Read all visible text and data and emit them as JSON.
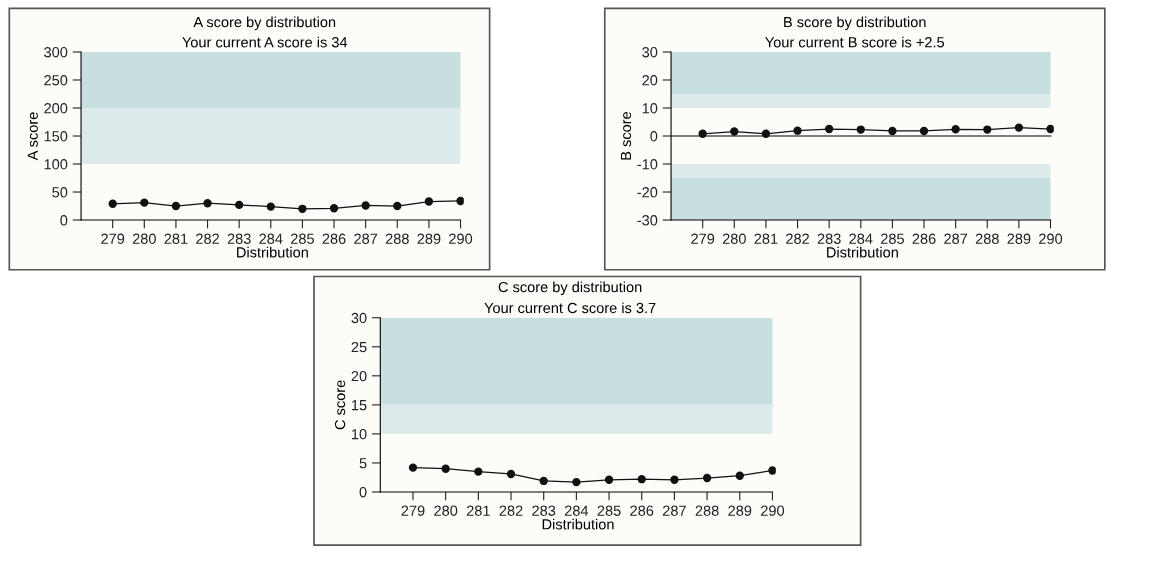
{
  "chart_data": [
    {
      "type": "line",
      "title": "A score by distribution",
      "subtitle": "Your current A score is 34",
      "xlabel": "Distribution",
      "ylabel": "A score",
      "categories": [
        "279",
        "280",
        "281",
        "282",
        "283",
        "284",
        "285",
        "286",
        "287",
        "288",
        "289",
        "290"
      ],
      "series": [
        {
          "color": "#111111",
          "values": [
            29,
            31,
            25,
            30,
            27,
            24,
            20,
            21,
            26,
            25,
            33,
            34
          ]
        }
      ],
      "ylim": [
        0,
        300
      ],
      "yticks": [
        0,
        50,
        100,
        150,
        200,
        250,
        300
      ],
      "bands": [
        {
          "axis": "y",
          "from": 100,
          "to": 200,
          "color": "#dcebea"
        },
        {
          "axis": "y",
          "from": 200,
          "to": 300,
          "color": "#c8dfe0"
        }
      ],
      "marker": "circle",
      "line_style": "solid",
      "grid": false,
      "legend": false
    },
    {
      "type": "line",
      "title": "B score by distribution",
      "subtitle": "Your current B score is +2.5",
      "xlabel": "Distribution",
      "ylabel": "B score",
      "categories": [
        "279",
        "280",
        "281",
        "282",
        "283",
        "284",
        "285",
        "286",
        "287",
        "288",
        "289",
        "290"
      ],
      "series": [
        {
          "color": "#111111",
          "values": [
            0.8,
            1.6,
            0.8,
            1.9,
            2.5,
            2.3,
            1.8,
            1.8,
            2.4,
            2.3,
            3.0,
            2.5
          ]
        }
      ],
      "ylim": [
        -30,
        30
      ],
      "yticks": [
        -30,
        -20,
        -10,
        0,
        10,
        20,
        30
      ],
      "bands": [
        {
          "axis": "y",
          "from": 10,
          "to": 15,
          "color": "#dcebea"
        },
        {
          "axis": "y",
          "from": 15,
          "to": 30,
          "color": "#c8dfe0"
        },
        {
          "axis": "y",
          "from": -15,
          "to": -10,
          "color": "#dcebea"
        },
        {
          "axis": "y",
          "from": -30,
          "to": -15,
          "color": "#c8dfe0"
        }
      ],
      "ref_lines": [
        {
          "axis": "y",
          "value": 0,
          "color": "#555555"
        }
      ],
      "marker": "circle",
      "line_style": "solid",
      "grid": false,
      "legend": false
    },
    {
      "type": "line",
      "title": "C score by distribution",
      "subtitle": "Your current C score is 3.7",
      "xlabel": "Distribution",
      "ylabel": "C score",
      "categories": [
        "279",
        "280",
        "281",
        "282",
        "283",
        "284",
        "285",
        "286",
        "287",
        "288",
        "289",
        "290"
      ],
      "series": [
        {
          "color": "#111111",
          "values": [
            4.2,
            4.0,
            3.5,
            3.1,
            1.9,
            1.7,
            2.1,
            2.2,
            2.1,
            2.4,
            2.8,
            3.7
          ]
        }
      ],
      "ylim": [
        0,
        30
      ],
      "yticks": [
        0,
        5,
        10,
        15,
        20,
        25,
        30
      ],
      "bands": [
        {
          "axis": "y",
          "from": 10,
          "to": 15,
          "color": "#dcebea"
        },
        {
          "axis": "y",
          "from": 15,
          "to": 30,
          "color": "#c8dfe0"
        }
      ],
      "marker": "circle",
      "line_style": "solid",
      "grid": false,
      "legend": false
    }
  ]
}
